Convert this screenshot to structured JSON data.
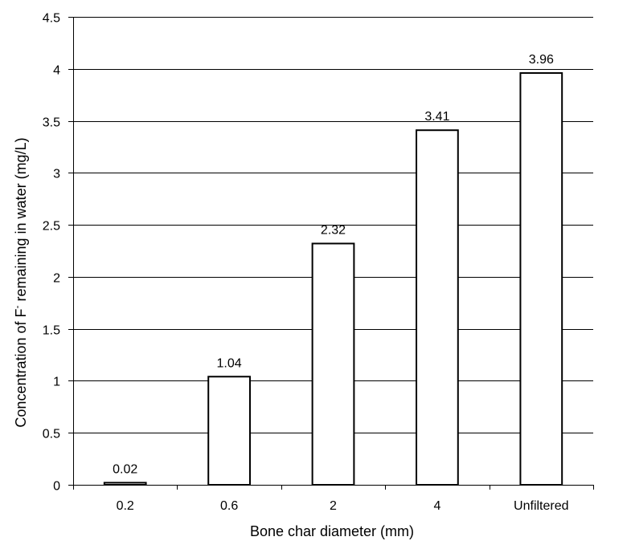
{
  "chart_data": {
    "type": "bar",
    "categories": [
      "0.2",
      "0.6",
      "2",
      "4",
      "Unfiltered"
    ],
    "values": [
      0.02,
      1.04,
      2.32,
      3.41,
      3.96
    ],
    "data_labels": [
      "0.02",
      "1.04",
      "2.32",
      "3.41",
      "3.96"
    ],
    "xlabel": "Bone char diameter (mm)",
    "ylabel": {
      "before": "Concentration of  F",
      "superscript": "-",
      "after": " remaining in water (mg/L)"
    },
    "ylim": [
      0,
      4.5
    ],
    "yticks": [
      "0",
      "0.5",
      "1",
      "1.5",
      "2",
      "2.5",
      "3",
      "3.5",
      "4",
      "4.5"
    ],
    "grid": true,
    "legend": "none",
    "bar_fill": "#ffffff",
    "bar_stroke": "#000000",
    "grid_color": "#000000"
  }
}
